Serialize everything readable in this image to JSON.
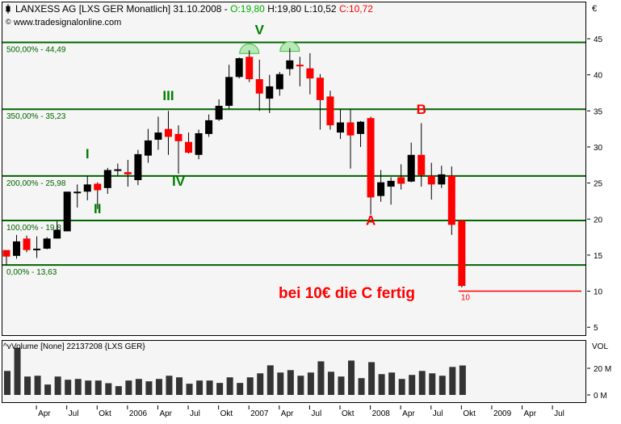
{
  "header": {
    "title": "LANXESS AG [LXS GER  Monatlich] 31.10.2008 - ",
    "open": "O:19,80",
    "high": "H:19,80",
    "low": "L:10,52",
    "close": "C:10,72",
    "source": "www.tradesignalonline.com",
    "currency": "€"
  },
  "colors": {
    "up": "#000000",
    "down": "#ff0000",
    "fib": "#006400",
    "wave": "#008000",
    "annotation": "#ff0000",
    "panel": "#f5f5f5"
  },
  "chart_data": [
    {
      "type": "candlestick",
      "title": "LANXESS AG [LXS GER  Monatlich]",
      "ylabel": "€",
      "ylim": [
        5,
        47
      ],
      "yticks": [
        5,
        10,
        15,
        20,
        25,
        30,
        35,
        40,
        45
      ],
      "start_month": "2005-01",
      "ohlc": [
        [
          15.7,
          15.7,
          13.6,
          14.8
        ],
        [
          14.9,
          17.8,
          14.5,
          16.9
        ],
        [
          17.3,
          17.7,
          15.4,
          15.7
        ],
        [
          15.9,
          17.6,
          14.6,
          15.9
        ],
        [
          15.9,
          17.5,
          15.8,
          17.3
        ],
        [
          17.3,
          19.7,
          17.3,
          18.5
        ],
        [
          18.3,
          23.8,
          18.3,
          23.8
        ],
        [
          23.6,
          24.8,
          21.6,
          23.8
        ],
        [
          23.8,
          26.0,
          22.6,
          24.8
        ],
        [
          24.9,
          25.1,
          21.4,
          24.0
        ],
        [
          24.3,
          27.1,
          23.5,
          26.8
        ],
        [
          26.7,
          27.7,
          26.0,
          26.9
        ],
        [
          26.5,
          28.2,
          24.5,
          26.2
        ],
        [
          25.4,
          29.6,
          24.7,
          29.0
        ],
        [
          28.8,
          32.5,
          27.8,
          30.9
        ],
        [
          31.0,
          34.2,
          29.6,
          32.0
        ],
        [
          32.5,
          35.0,
          28.9,
          31.4
        ],
        [
          31.8,
          33.0,
          26.3,
          30.8
        ],
        [
          30.7,
          32.0,
          29.1,
          29.2
        ],
        [
          28.9,
          32.4,
          28.3,
          31.9
        ],
        [
          31.8,
          34.5,
          31.4,
          33.7
        ],
        [
          33.8,
          36.6,
          33.6,
          35.7
        ],
        [
          35.7,
          41.4,
          35.3,
          39.7
        ],
        [
          39.7,
          42.4,
          39.5,
          42.3
        ],
        [
          42.5,
          43.4,
          39.0,
          39.4
        ],
        [
          39.4,
          42.1,
          35.0,
          37.4
        ],
        [
          36.7,
          40.0,
          34.7,
          38.4
        ],
        [
          38.0,
          40.4,
          37.1,
          40.1
        ],
        [
          40.8,
          43.7,
          39.9,
          42.0
        ],
        [
          41.4,
          42.5,
          38.4,
          41.3
        ],
        [
          40.9,
          43.0,
          37.3,
          39.5
        ],
        [
          39.6,
          40.1,
          32.4,
          36.5
        ],
        [
          37.0,
          37.8,
          32.4,
          33.0
        ],
        [
          32.0,
          35.2,
          31.1,
          33.4
        ],
        [
          33.4,
          35.2,
          27.0,
          31.6
        ],
        [
          31.8,
          33.6,
          30.0,
          33.5
        ],
        [
          34.0,
          34.2,
          20.6,
          23.0
        ],
        [
          23.2,
          26.8,
          22.4,
          25.1
        ],
        [
          24.5,
          25.8,
          22.0,
          25.3
        ],
        [
          25.8,
          27.6,
          24.1,
          24.9
        ],
        [
          25.2,
          30.6,
          25.1,
          28.9
        ],
        [
          28.9,
          33.3,
          24.5,
          26.1
        ],
        [
          26.0,
          27.8,
          22.7,
          24.8
        ],
        [
          24.8,
          27.4,
          24.3,
          26.2
        ],
        [
          26.0,
          27.3,
          17.8,
          19.2
        ],
        [
          19.8,
          19.8,
          10.52,
          10.72
        ]
      ],
      "fib_levels": [
        {
          "label": "500,00% - 44,49",
          "value": 44.49
        },
        {
          "label": "350,00% - 35,23",
          "value": 35.23
        },
        {
          "label": "200,00% - 25,98",
          "value": 25.98
        },
        {
          "label": "100,00% - 19,8",
          "value": 19.8
        },
        {
          "label": "0,00% - 13,63",
          "value": 13.63
        }
      ],
      "target_line": {
        "value": 10,
        "label": "10",
        "from_index": 45
      },
      "top_markers": [
        24,
        28
      ],
      "wave_labels": [
        {
          "text": "I",
          "index": 8,
          "value": 28.4,
          "color": "wave"
        },
        {
          "text": "II",
          "index": 9,
          "value": 20.8,
          "color": "wave"
        },
        {
          "text": "III",
          "index": 16,
          "value": 36.5,
          "color": "wave"
        },
        {
          "text": "IV",
          "index": 17,
          "value": 24.6,
          "color": "wave"
        },
        {
          "text": "V",
          "index": 25,
          "value": 45.6,
          "color": "wave"
        },
        {
          "text": "A",
          "index": 36,
          "value": 19.2,
          "color": "annotation"
        },
        {
          "text": "B",
          "index": 41,
          "value": 34.6,
          "color": "annotation"
        }
      ],
      "annotation": "bei 10€ die C fertig"
    },
    {
      "type": "bar",
      "title": "Volume [None] 22137208 {LXS GER}",
      "ylabel": "VOL",
      "yticks": [
        {
          "value": 0,
          "label": "0 M"
        },
        {
          "value": 20,
          "label": "20 M"
        }
      ],
      "unit": "M",
      "values": [
        18,
        35.4,
        13.8,
        14.4,
        7.8,
        13.8,
        11.4,
        12,
        10.8,
        10.8,
        8.8,
        6.6,
        10.8,
        12,
        10.2,
        12,
        14.4,
        13.2,
        8.4,
        10.8,
        10.8,
        9,
        13.2,
        9,
        13.2,
        16.2,
        22.2,
        16.8,
        18.6,
        14.4,
        16.8,
        25.2,
        17.4,
        13.8,
        25.8,
        12.6,
        24.6,
        15.6,
        16.8,
        12,
        15,
        18,
        16.2,
        14.4,
        21,
        22.1
      ]
    }
  ],
  "xaxis": {
    "ticks": [
      {
        "label": "Apr",
        "month": 3
      },
      {
        "label": "Jul",
        "month": 6
      },
      {
        "label": "Okt",
        "month": 9
      },
      {
        "label": "2006",
        "month": 12
      },
      {
        "label": "Apr",
        "month": 15
      },
      {
        "label": "Jul",
        "month": 18
      },
      {
        "label": "Okt",
        "month": 21
      },
      {
        "label": "2007",
        "month": 24
      },
      {
        "label": "Apr",
        "month": 27
      },
      {
        "label": "Jul",
        "month": 30
      },
      {
        "label": "Okt",
        "month": 33
      },
      {
        "label": "2008",
        "month": 36
      },
      {
        "label": "Apr",
        "month": 39
      },
      {
        "label": "Jul",
        "month": 42
      },
      {
        "label": "Okt",
        "month": 45
      },
      {
        "label": "2009",
        "month": 48
      },
      {
        "label": "Apr",
        "month": 51
      },
      {
        "label": "Jul",
        "month": 54
      }
    ]
  }
}
